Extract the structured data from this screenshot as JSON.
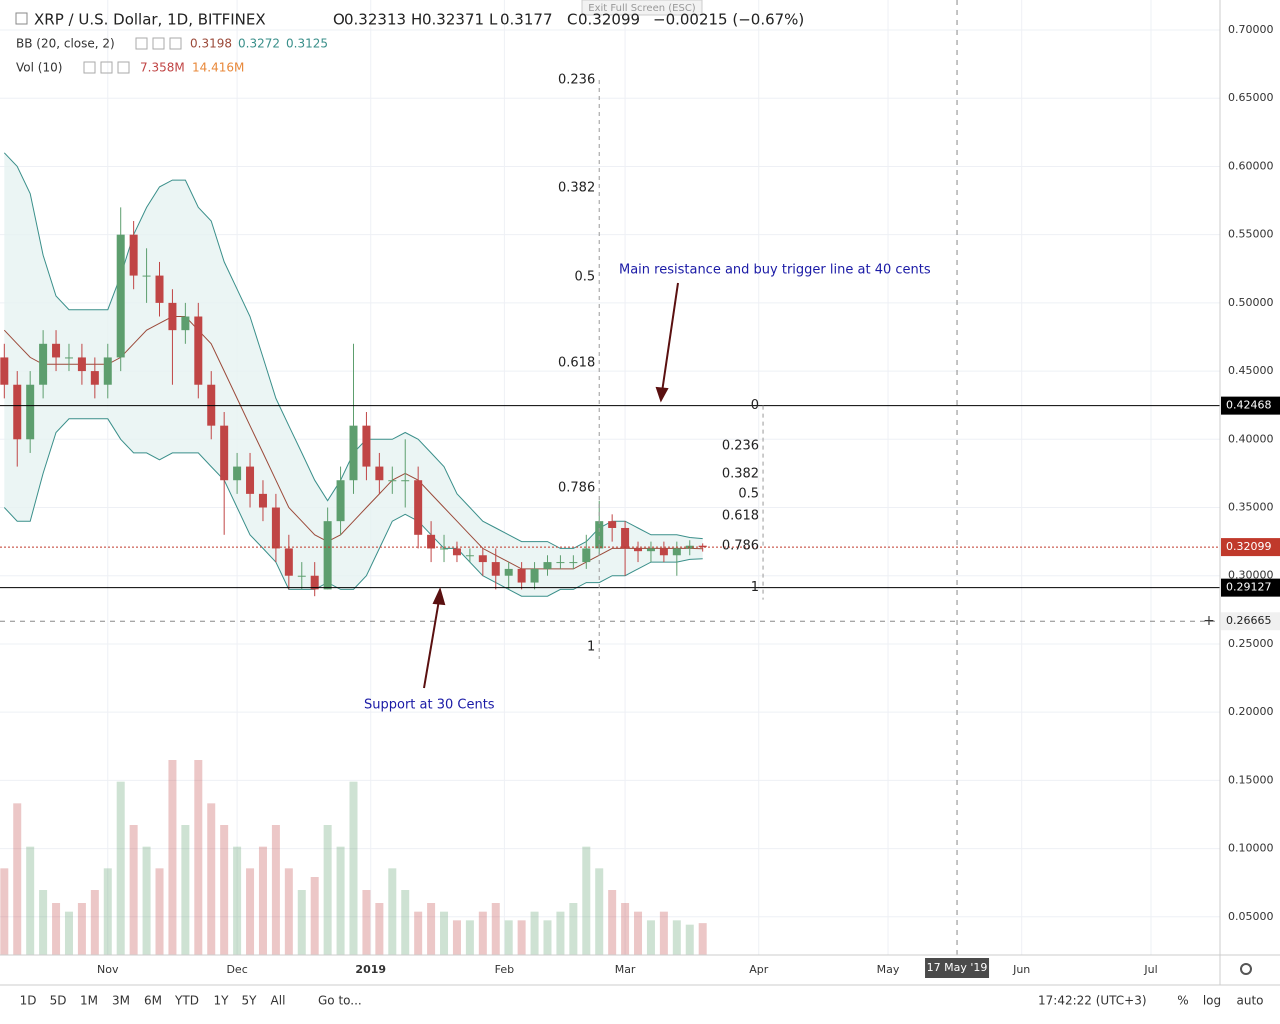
{
  "chart_data": {
    "type": "candlestick",
    "title": "XRP / U.S. Dollar, 1D, BITFINEX",
    "ohlc_legend": [
      {
        "label": "O",
        "value": 0.32313
      },
      {
        "label": "H",
        "value": 0.32371
      },
      {
        "label": "L",
        "value": 0.3177
      },
      {
        "label": "C",
        "value": 0.32099
      }
    ],
    "change_label": "−0.00215 (−0.67%)",
    "x": [
      0,
      3,
      6,
      9,
      12,
      15,
      18,
      21,
      24,
      27,
      30,
      33,
      36,
      39,
      42,
      45,
      48,
      51,
      54,
      57,
      60,
      63,
      66,
      69,
      72,
      75,
      78,
      81,
      84,
      87,
      90,
      93,
      96,
      99,
      102,
      105,
      108,
      111,
      114,
      117,
      120,
      123,
      126,
      129,
      132,
      135,
      138,
      141,
      144,
      147,
      150,
      153,
      156,
      159,
      162
    ],
    "open": [
      0.46,
      0.44,
      0.4,
      0.44,
      0.47,
      0.46,
      0.46,
      0.45,
      0.44,
      0.46,
      0.55,
      0.52,
      0.52,
      0.5,
      0.48,
      0.49,
      0.44,
      0.41,
      0.37,
      0.38,
      0.36,
      0.35,
      0.32,
      0.3,
      0.3,
      0.29,
      0.34,
      0.37,
      0.41,
      0.38,
      0.37,
      0.37,
      0.37,
      0.33,
      0.32,
      0.32,
      0.315,
      0.315,
      0.31,
      0.3,
      0.305,
      0.295,
      0.305,
      0.31,
      0.31,
      0.31,
      0.32,
      0.34,
      0.335,
      0.32,
      0.318,
      0.32,
      0.315,
      0.32,
      0.322
    ],
    "high": [
      0.47,
      0.45,
      0.45,
      0.48,
      0.48,
      0.47,
      0.47,
      0.46,
      0.47,
      0.57,
      0.56,
      0.54,
      0.53,
      0.51,
      0.5,
      0.5,
      0.45,
      0.42,
      0.39,
      0.39,
      0.37,
      0.36,
      0.33,
      0.31,
      0.31,
      0.35,
      0.38,
      0.47,
      0.42,
      0.39,
      0.38,
      0.4,
      0.38,
      0.34,
      0.33,
      0.325,
      0.32,
      0.32,
      0.32,
      0.31,
      0.31,
      0.31,
      0.315,
      0.315,
      0.315,
      0.33,
      0.355,
      0.345,
      0.34,
      0.325,
      0.325,
      0.325,
      0.325,
      0.326,
      0.3237
    ],
    "low": [
      0.43,
      0.38,
      0.39,
      0.43,
      0.45,
      0.45,
      0.44,
      0.43,
      0.43,
      0.45,
      0.51,
      0.5,
      0.49,
      0.44,
      0.47,
      0.43,
      0.4,
      0.33,
      0.36,
      0.35,
      0.34,
      0.31,
      0.29,
      0.29,
      0.285,
      0.29,
      0.33,
      0.36,
      0.37,
      0.36,
      0.36,
      0.35,
      0.32,
      0.31,
      0.31,
      0.31,
      0.31,
      0.3,
      0.29,
      0.29,
      0.29,
      0.29,
      0.3,
      0.305,
      0.305,
      0.305,
      0.315,
      0.325,
      0.3,
      0.31,
      0.31,
      0.31,
      0.3,
      0.315,
      0.3177
    ],
    "close": [
      0.44,
      0.4,
      0.44,
      0.47,
      0.46,
      0.46,
      0.45,
      0.44,
      0.46,
      0.55,
      0.52,
      0.52,
      0.5,
      0.48,
      0.49,
      0.44,
      0.41,
      0.37,
      0.38,
      0.36,
      0.35,
      0.32,
      0.3,
      0.3,
      0.29,
      0.34,
      0.37,
      0.41,
      0.38,
      0.37,
      0.37,
      0.37,
      0.33,
      0.32,
      0.32,
      0.315,
      0.315,
      0.31,
      0.3,
      0.305,
      0.295,
      0.305,
      0.31,
      0.31,
      0.31,
      0.32,
      0.34,
      0.335,
      0.32,
      0.318,
      0.32,
      0.315,
      0.32,
      0.322,
      0.32099
    ],
    "up_color": "#5d9e6e",
    "down_color": "#c04545",
    "bollinger": {
      "name": "BB (20, close, 2)",
      "legend_values": [
        0.3198,
        0.3272,
        0.3125
      ],
      "basis": [
        0.48,
        0.47,
        0.46,
        0.455,
        0.455,
        0.455,
        0.455,
        0.455,
        0.455,
        0.46,
        0.47,
        0.48,
        0.485,
        0.49,
        0.49,
        0.48,
        0.47,
        0.45,
        0.43,
        0.41,
        0.39,
        0.37,
        0.35,
        0.34,
        0.33,
        0.325,
        0.33,
        0.34,
        0.35,
        0.36,
        0.37,
        0.375,
        0.37,
        0.36,
        0.35,
        0.34,
        0.33,
        0.32,
        0.315,
        0.31,
        0.305,
        0.305,
        0.305,
        0.305,
        0.305,
        0.31,
        0.315,
        0.32,
        0.32,
        0.32,
        0.32,
        0.32,
        0.32,
        0.32,
        0.3198
      ],
      "upper": [
        0.61,
        0.6,
        0.58,
        0.535,
        0.505,
        0.495,
        0.495,
        0.495,
        0.495,
        0.52,
        0.55,
        0.57,
        0.585,
        0.59,
        0.59,
        0.57,
        0.56,
        0.53,
        0.51,
        0.49,
        0.46,
        0.43,
        0.41,
        0.39,
        0.37,
        0.355,
        0.37,
        0.39,
        0.4,
        0.4,
        0.4,
        0.405,
        0.4,
        0.39,
        0.38,
        0.36,
        0.35,
        0.34,
        0.335,
        0.33,
        0.325,
        0.325,
        0.325,
        0.32,
        0.32,
        0.325,
        0.335,
        0.34,
        0.34,
        0.335,
        0.33,
        0.33,
        0.33,
        0.328,
        0.3272
      ],
      "lower": [
        0.35,
        0.34,
        0.34,
        0.375,
        0.405,
        0.415,
        0.415,
        0.415,
        0.415,
        0.4,
        0.39,
        0.39,
        0.385,
        0.39,
        0.39,
        0.39,
        0.38,
        0.37,
        0.35,
        0.33,
        0.32,
        0.31,
        0.29,
        0.29,
        0.29,
        0.295,
        0.29,
        0.29,
        0.3,
        0.32,
        0.34,
        0.345,
        0.34,
        0.33,
        0.32,
        0.32,
        0.31,
        0.3,
        0.295,
        0.29,
        0.285,
        0.285,
        0.285,
        0.29,
        0.29,
        0.295,
        0.295,
        0.3,
        0.3,
        0.305,
        0.31,
        0.31,
        0.31,
        0.312,
        0.3125
      ],
      "basis_color": "#9b4a3a",
      "band_color": "#3a8f8a",
      "fill_color": "#e6f3f1"
    },
    "volume": {
      "name": "Vol (10)",
      "legend_labels": [
        "7.358M",
        "14.416M"
      ],
      "ylim": [
        0,
        60
      ],
      "values": [
        20,
        35,
        25,
        15,
        12,
        10,
        12,
        15,
        20,
        40,
        30,
        25,
        20,
        45,
        30,
        45,
        35,
        30,
        25,
        20,
        25,
        30,
        20,
        15,
        18,
        30,
        25,
        40,
        15,
        12,
        20,
        15,
        10,
        12,
        10,
        8,
        8,
        10,
        12,
        8,
        8,
        10,
        8,
        10,
        12,
        25,
        20,
        15,
        12,
        10,
        8,
        10,
        8,
        7,
        7.358
      ]
    },
    "xlim": [
      -1,
      282
    ],
    "ylim": [
      0.022,
      0.722
    ],
    "xticks": [
      {
        "value": 24,
        "label": "Nov"
      },
      {
        "value": 54,
        "label": "Dec"
      },
      {
        "value": 85,
        "label": "2019"
      },
      {
        "value": 116,
        "label": "Feb"
      },
      {
        "value": 144,
        "label": "Mar"
      },
      {
        "value": 175,
        "label": "Apr"
      },
      {
        "value": 205,
        "label": "May"
      },
      {
        "value": 236,
        "label": "Jun"
      },
      {
        "value": 266,
        "label": "Jul"
      }
    ],
    "yticks": [
      {
        "value": 0.05,
        "label": "0.05000"
      },
      {
        "value": 0.1,
        "label": "0.10000"
      },
      {
        "value": 0.15,
        "label": "0.15000"
      },
      {
        "value": 0.2,
        "label": "0.20000"
      },
      {
        "value": 0.25,
        "label": "0.25000"
      },
      {
        "value": 0.3,
        "label": "0.30000"
      },
      {
        "value": 0.35,
        "label": "0.35000"
      },
      {
        "value": 0.4,
        "label": "0.40000"
      },
      {
        "value": 0.45,
        "label": "0.45000"
      },
      {
        "value": 0.5,
        "label": "0.50000"
      },
      {
        "value": 0.55,
        "label": "0.55000"
      },
      {
        "value": 0.6,
        "label": "0.60000"
      },
      {
        "value": 0.65,
        "label": "0.65000"
      },
      {
        "value": 0.7,
        "label": "0.70000"
      }
    ],
    "grid": true,
    "price_lines": [
      {
        "value": 0.42468,
        "color": "#000000",
        "style": "solid"
      },
      {
        "value": 0.29127,
        "color": "#000000",
        "style": "solid"
      },
      {
        "value": 0.32099,
        "color": "#c0392b",
        "style": "dotted"
      }
    ],
    "crosshair": {
      "x": 221,
      "x_label": "17 May '19",
      "y": 0.26665
    },
    "fib_sets": [
      {
        "x": 138,
        "levels": [
          0.236,
          0.382,
          0.5,
          0.618,
          0.786,
          1
        ],
        "prices": [
          0.6634,
          0.5842,
          0.519,
          0.4559,
          0.3643,
          0.2478
        ]
      },
      {
        "x": 176,
        "levels": [
          0,
          0.236,
          0.382,
          0.5,
          0.618,
          0.786,
          1
        ],
        "prices": [
          0.42468,
          0.3951,
          0.3746,
          0.3599,
          0.3438,
          0.3218,
          0.29127
        ]
      }
    ],
    "annotations": [
      "Main resistance and buy trigger line at 40 cents",
      "Support at 30 Cents"
    ]
  },
  "tooltip": "Exit Full Screen (ESC)",
  "toolbar": {
    "ranges": [
      "1D",
      "5D",
      "1M",
      "3M",
      "6M",
      "YTD",
      "1Y",
      "5Y",
      "All"
    ],
    "goto": "Go to...",
    "clock": "17:42:22 (UTC+3)",
    "options": [
      "%",
      "log",
      "auto"
    ]
  }
}
